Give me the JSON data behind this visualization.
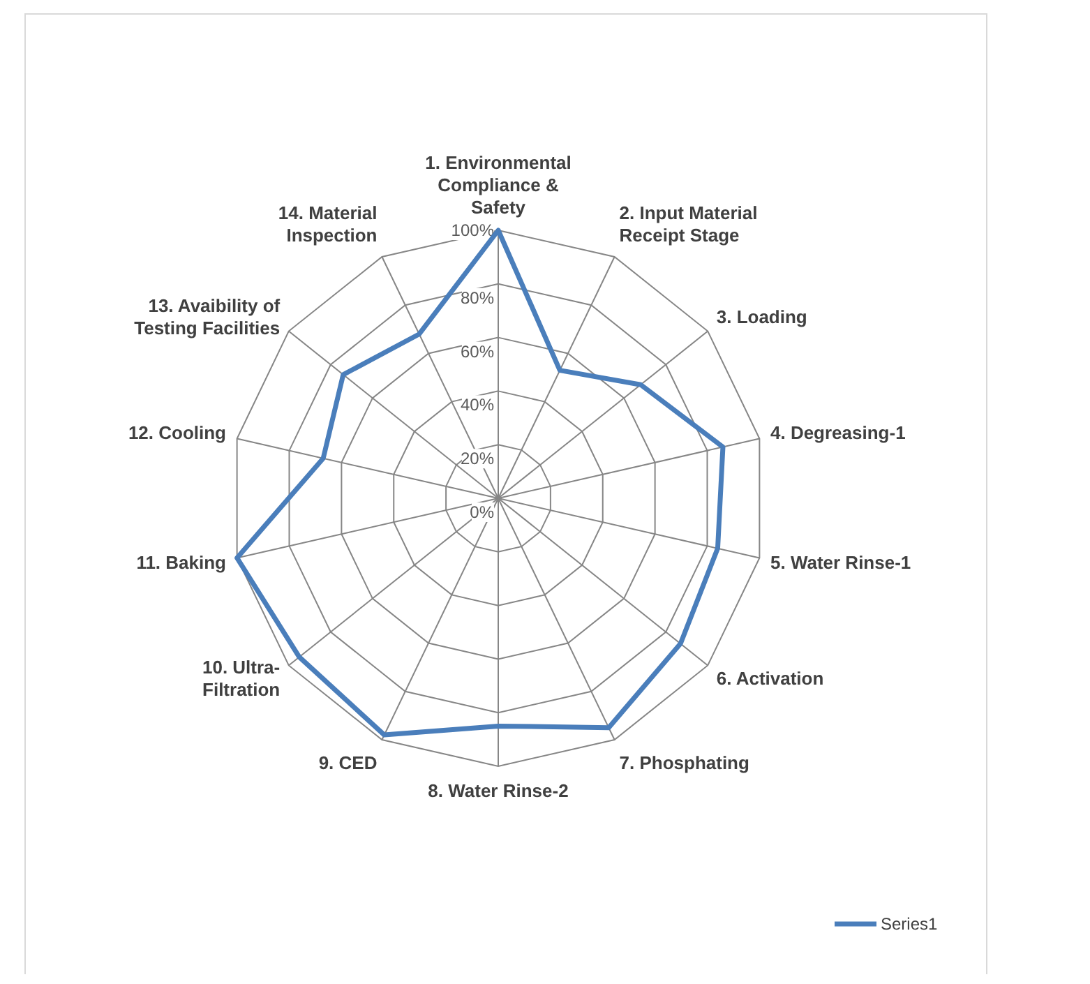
{
  "chart_data": {
    "type": "radar",
    "categories": [
      "1. Environmental Compliance & Safety",
      "2. Input Material Receipt Stage",
      "3. Loading",
      "4. Degreasing-1",
      "5. Water Rinse-1",
      "6. Activation",
      "7. Phosphating",
      "8. Water Rinse-2",
      "9. CED",
      "10. Ultra-Filtration",
      "11. Baking",
      "12. Cooling",
      "13. Avaibility of Testing Facilities",
      "14. Material Inspection"
    ],
    "series": [
      {
        "name": "Series1",
        "color": "#4a7ebb",
        "values": [
          100,
          53,
          68,
          86,
          84,
          87,
          95,
          85,
          98,
          95,
          100,
          67,
          74,
          68
        ]
      }
    ],
    "ylim": [
      0,
      100
    ],
    "yticks": [
      {
        "value": 0,
        "label": "0%"
      },
      {
        "value": 20,
        "label": "20%"
      },
      {
        "value": 40,
        "label": "40%"
      },
      {
        "value": 60,
        "label": "60%"
      },
      {
        "value": 80,
        "label": "80%"
      },
      {
        "value": 100,
        "label": "100%"
      }
    ],
    "grid": true,
    "legend": "bottom right",
    "marker": "none",
    "line_style": "solid"
  }
}
